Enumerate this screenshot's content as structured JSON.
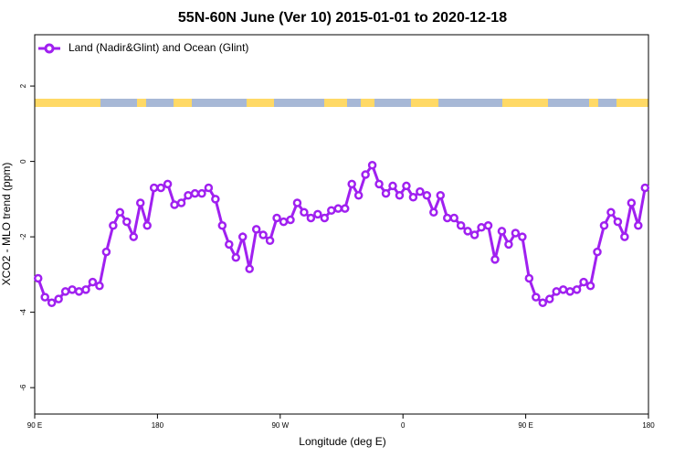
{
  "chart_data": {
    "type": "line",
    "title": "55N-60N June (Ver 10)   2015-01-01 to 2020-12-18",
    "x_label": "Longitude (deg E)",
    "y_label": "XCO2 - MLO trend (ppm)",
    "x": [
      92.5,
      97.5,
      102.5,
      107.5,
      112.5,
      117.5,
      122.5,
      127.5,
      132.5,
      137.5,
      142.5,
      147.5,
      152.5,
      157.5,
      162.5,
      167.5,
      172.5,
      177.5,
      182.5,
      187.5,
      192.5,
      197.5,
      202.5,
      207.5,
      212.5,
      217.5,
      222.5,
      227.5,
      232.5,
      237.5,
      242.5,
      247.5,
      252.5,
      257.5,
      262.5,
      267.5,
      272.5,
      277.5,
      282.5,
      287.5,
      292.5,
      297.5,
      302.5,
      307.5,
      312.5,
      317.5,
      322.5,
      327.5,
      332.5,
      337.5,
      342.5,
      347.5,
      352.5,
      357.5,
      362.5,
      367.5,
      372.5,
      377.5,
      382.5,
      387.5,
      392.5,
      397.5,
      402.5,
      407.5,
      412.5,
      417.5,
      422.5,
      427.5,
      432.5,
      437.5,
      442.5,
      447.5,
      452.5,
      457.5,
      462.5,
      467.5,
      472.5,
      477.5,
      482.5,
      487.5,
      492.5,
      497.5,
      502.5,
      507.5,
      512.5,
      517.5,
      522.5,
      527.5,
      532.5,
      537.5
    ],
    "series": [
      {
        "name": "Land (Nadir&Glint) and Ocean (Glint)",
        "color": "#a020f0",
        "values": [
          -3.1,
          -3.6,
          -3.75,
          -3.65,
          -3.45,
          -3.4,
          -3.45,
          -3.4,
          -3.2,
          -3.3,
          -2.4,
          -1.7,
          -1.35,
          -1.6,
          -2.0,
          -1.1,
          -1.7,
          -0.7,
          -0.7,
          -0.6,
          -1.15,
          -1.1,
          -0.9,
          -0.85,
          -0.85,
          -0.7,
          -1.0,
          -1.7,
          -2.2,
          -2.55,
          -2.0,
          -2.85,
          -1.8,
          -1.95,
          -2.1,
          -1.5,
          -1.6,
          -1.55,
          -1.1,
          -1.35,
          -1.5,
          -1.4,
          -1.5,
          -1.3,
          -1.25,
          -1.25,
          -0.6,
          -0.9,
          -0.35,
          -0.1,
          -0.6,
          -0.85,
          -0.65,
          -0.9,
          -0.65,
          -0.95,
          -0.8,
          -0.9,
          -1.35,
          -0.9,
          -1.5,
          -1.5,
          -1.7,
          -1.85,
          -1.95,
          -1.75,
          -1.7,
          -2.6,
          -1.85,
          -2.2,
          -1.9,
          -2.0,
          -3.1,
          -3.6,
          -3.75,
          -3.65,
          -3.45,
          -3.4,
          -3.45,
          -3.4,
          -3.2,
          -3.3,
          -2.4,
          -1.7,
          -1.35,
          -1.6,
          -2.0,
          -1.1,
          -1.7,
          -0.7
        ]
      }
    ],
    "xlim": [
      90,
      540
    ],
    "xticks": [
      {
        "value": 90,
        "label": "90 E"
      },
      180,
      {
        "value": 270,
        "label": "90 W"
      },
      {
        "value": 360,
        "label": "0"
      },
      {
        "value": 450,
        "label": "90 E"
      },
      {
        "value": 540,
        "label": "180"
      }
    ],
    "ylim": [
      -6.7,
      3.36
    ],
    "yticks": [
      -6,
      -4,
      -2,
      0,
      2
    ],
    "legend": "top-left"
  }
}
